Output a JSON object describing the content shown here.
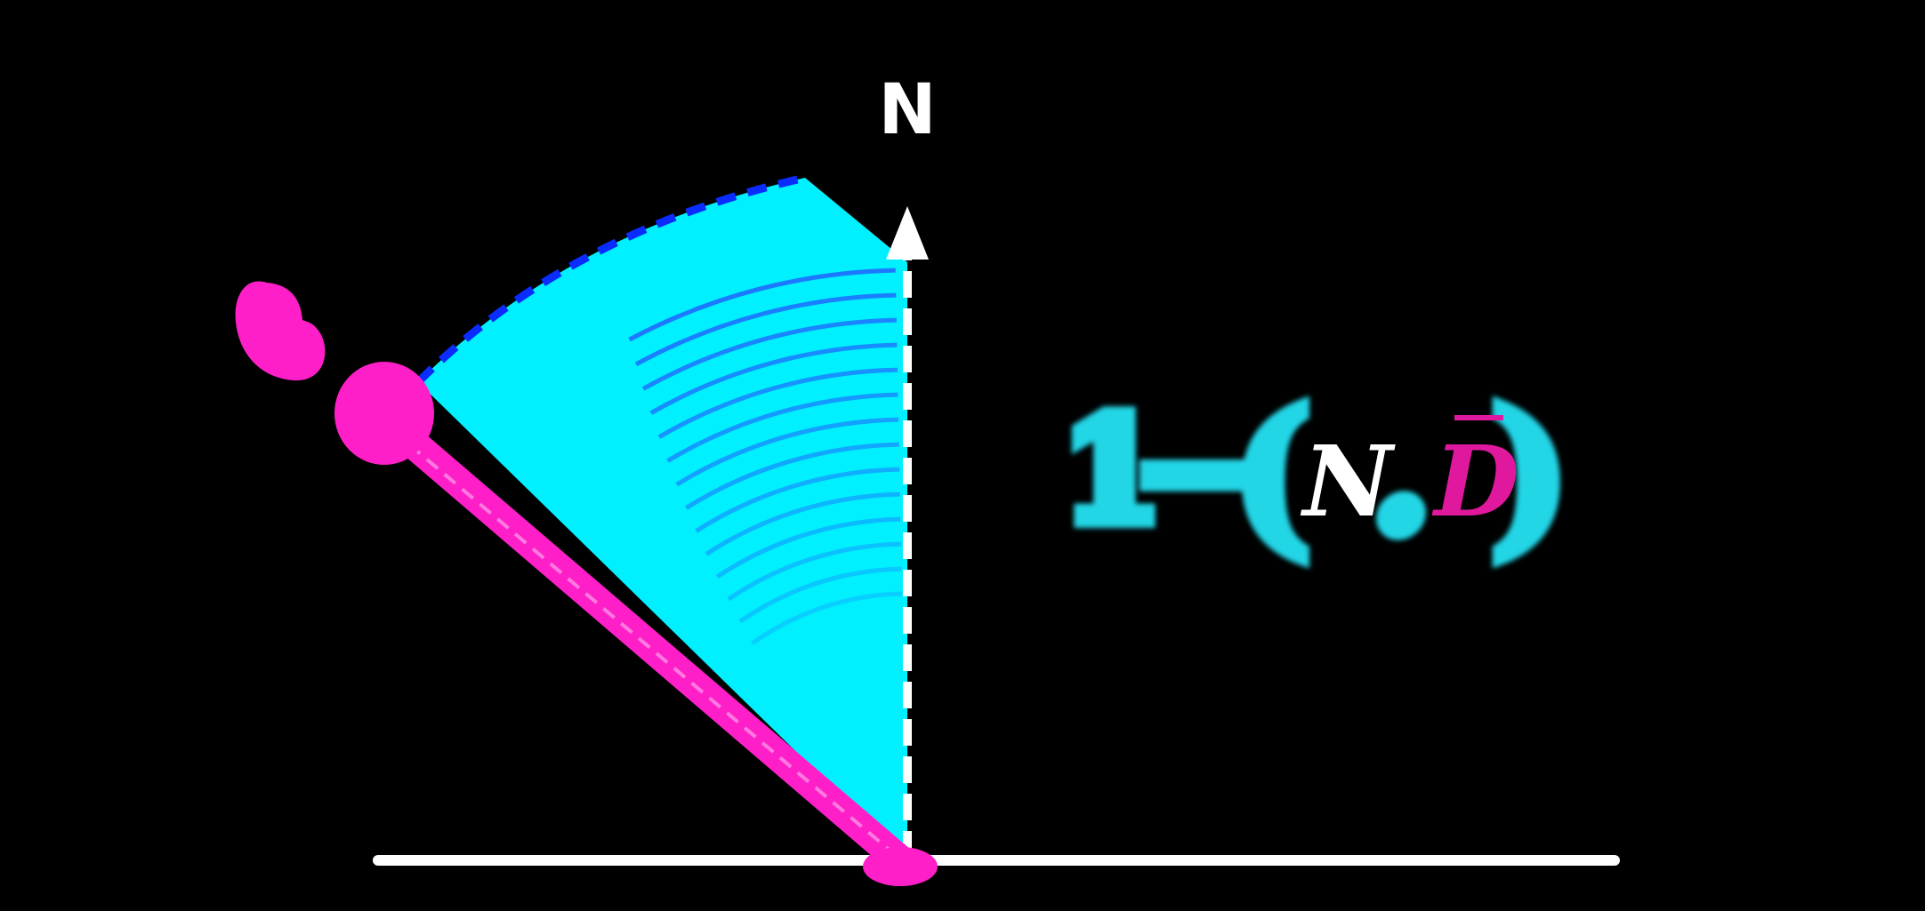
{
  "normal_label": "N",
  "formula": {
    "one": "1",
    "minus": "−",
    "open_paren": "(",
    "n": "N",
    "dot": ".",
    "d": "D",
    "close_paren": ")"
  },
  "colors": {
    "background": "#000000",
    "normal_axis": "#ffffff",
    "surface": "#ffffff",
    "sweep_fill": "#00f0ff",
    "sweep_lines": "#1f6bff",
    "direction_ray": "#ff1fc8",
    "direction_marker": "#ff1fc8",
    "formula_glow": "#21d6e6",
    "formula_text": "#ffffff",
    "formula_d": "#e0189e"
  },
  "icons": {
    "direction_marker": "heart-icon"
  }
}
